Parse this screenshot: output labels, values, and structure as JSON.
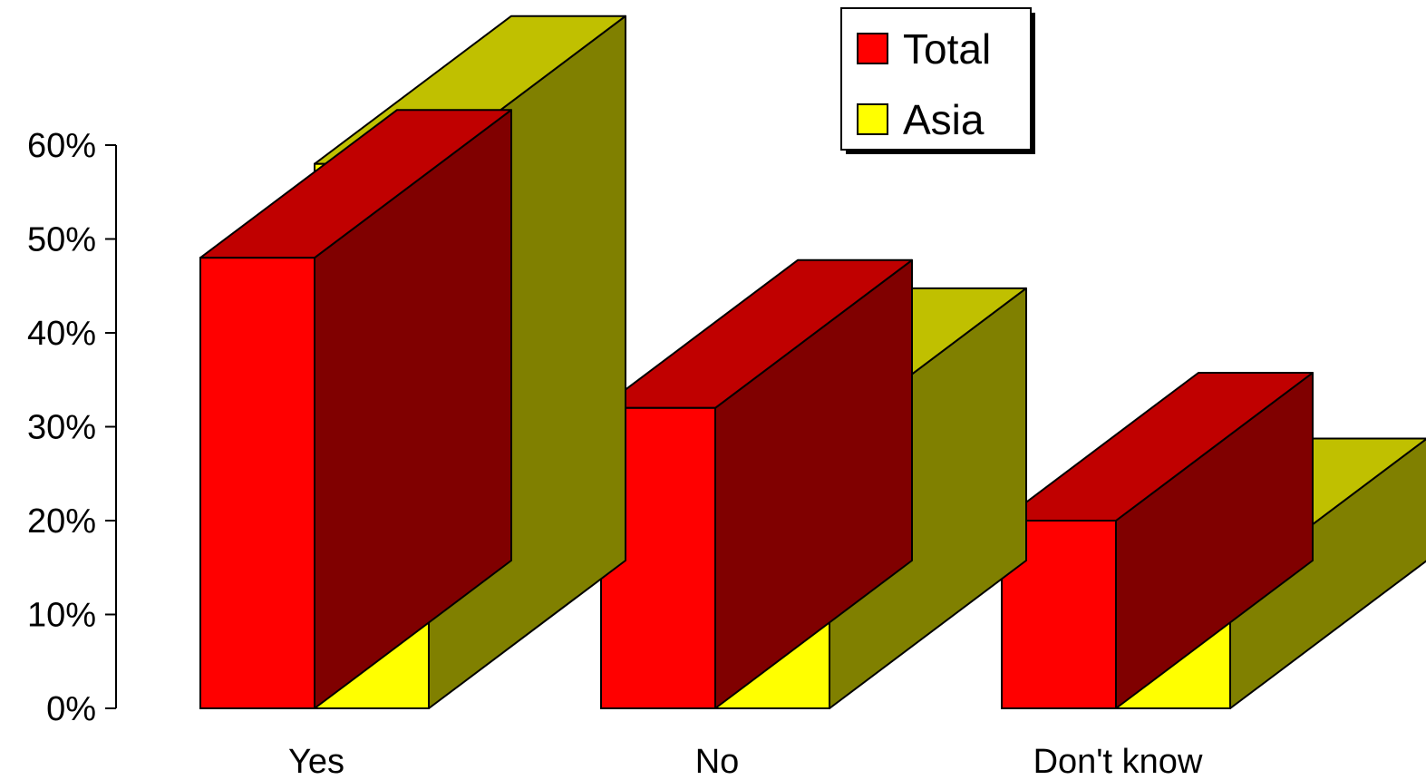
{
  "chart_data": {
    "type": "bar",
    "style": "3d-clustered",
    "categories": [
      "Yes",
      "No",
      "Don't know"
    ],
    "series": [
      {
        "name": "Total",
        "values": [
          48,
          32,
          20
        ],
        "color": "#ff0000",
        "top_color": "#c00000",
        "side_color": "#800000"
      },
      {
        "name": "Asia",
        "values": [
          58,
          29,
          13
        ],
        "color": "#ffff00",
        "top_color": "#c0c000",
        "side_color": "#808000"
      }
    ],
    "y_ticks": [
      "0%",
      "10%",
      "20%",
      "30%",
      "40%",
      "50%",
      "60%"
    ],
    "ylim": [
      0,
      60
    ],
    "y_unit": "%",
    "legend": {
      "placement": "top-center",
      "items": [
        "Total",
        "Asia"
      ]
    },
    "grid": false,
    "title": "",
    "xlabel": "",
    "ylabel": ""
  }
}
